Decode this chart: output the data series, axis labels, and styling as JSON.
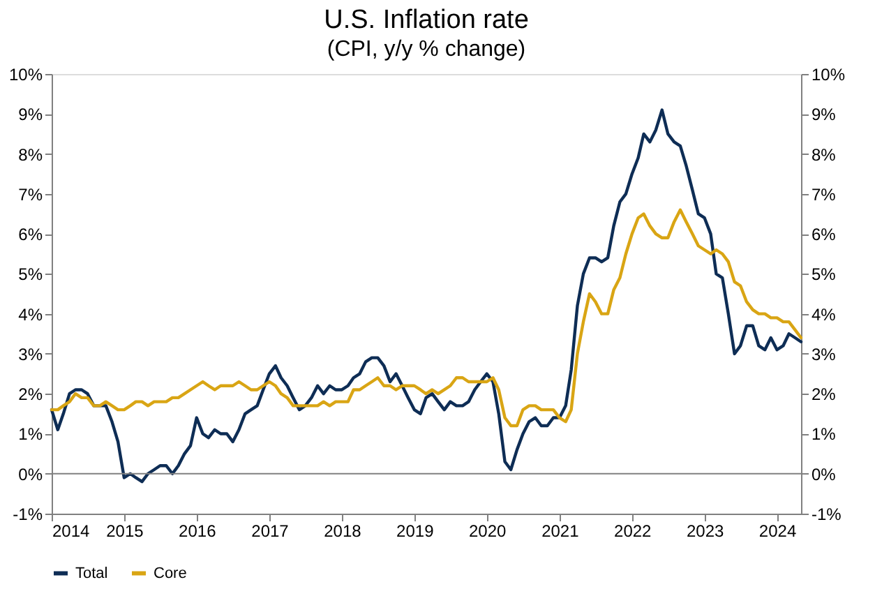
{
  "chart_data": {
    "type": "line",
    "title": "U.S. Inflation rate",
    "subtitle": "(CPI, y/y % change)",
    "x": [
      "2014-01",
      "2014-02",
      "2014-03",
      "2014-04",
      "2014-05",
      "2014-06",
      "2014-07",
      "2014-08",
      "2014-09",
      "2014-10",
      "2014-11",
      "2014-12",
      "2015-01",
      "2015-02",
      "2015-03",
      "2015-04",
      "2015-05",
      "2015-06",
      "2015-07",
      "2015-08",
      "2015-09",
      "2015-10",
      "2015-11",
      "2015-12",
      "2016-01",
      "2016-02",
      "2016-03",
      "2016-04",
      "2016-05",
      "2016-06",
      "2016-07",
      "2016-08",
      "2016-09",
      "2016-10",
      "2016-11",
      "2016-12",
      "2017-01",
      "2017-02",
      "2017-03",
      "2017-04",
      "2017-05",
      "2017-06",
      "2017-07",
      "2017-08",
      "2017-09",
      "2017-10",
      "2017-11",
      "2017-12",
      "2018-01",
      "2018-02",
      "2018-03",
      "2018-04",
      "2018-05",
      "2018-06",
      "2018-07",
      "2018-08",
      "2018-09",
      "2018-10",
      "2018-11",
      "2018-12",
      "2019-01",
      "2019-02",
      "2019-03",
      "2019-04",
      "2019-05",
      "2019-06",
      "2019-07",
      "2019-08",
      "2019-09",
      "2019-10",
      "2019-11",
      "2019-12",
      "2020-01",
      "2020-02",
      "2020-03",
      "2020-04",
      "2020-05",
      "2020-06",
      "2020-07",
      "2020-08",
      "2020-09",
      "2020-10",
      "2020-11",
      "2020-12",
      "2021-01",
      "2021-02",
      "2021-03",
      "2021-04",
      "2021-05",
      "2021-06",
      "2021-07",
      "2021-08",
      "2021-09",
      "2021-10",
      "2021-11",
      "2021-12",
      "2022-01",
      "2022-02",
      "2022-03",
      "2022-04",
      "2022-05",
      "2022-06",
      "2022-07",
      "2022-08",
      "2022-09",
      "2022-10",
      "2022-11",
      "2022-12",
      "2023-01",
      "2023-02",
      "2023-03",
      "2023-04",
      "2023-05",
      "2023-06",
      "2023-07",
      "2023-08",
      "2023-09",
      "2023-10",
      "2023-11",
      "2023-12",
      "2024-01",
      "2024-02",
      "2024-03",
      "2024-04",
      "2024-05"
    ],
    "series": [
      {
        "name": "Total",
        "color": "#0e2d55",
        "values": [
          1.6,
          1.1,
          1.5,
          2.0,
          2.1,
          2.1,
          2.0,
          1.7,
          1.7,
          1.7,
          1.3,
          0.8,
          -0.1,
          0.0,
          -0.1,
          -0.2,
          0.0,
          0.1,
          0.2,
          0.2,
          0.0,
          0.2,
          0.5,
          0.7,
          1.4,
          1.0,
          0.9,
          1.1,
          1.0,
          1.0,
          0.8,
          1.1,
          1.5,
          1.6,
          1.7,
          2.1,
          2.5,
          2.7,
          2.4,
          2.2,
          1.9,
          1.6,
          1.7,
          1.9,
          2.2,
          2.0,
          2.2,
          2.1,
          2.1,
          2.2,
          2.4,
          2.5,
          2.8,
          2.9,
          2.9,
          2.7,
          2.3,
          2.5,
          2.2,
          1.9,
          1.6,
          1.5,
          1.9,
          2.0,
          1.8,
          1.6,
          1.8,
          1.7,
          1.7,
          1.8,
          2.1,
          2.3,
          2.5,
          2.3,
          1.5,
          0.3,
          0.1,
          0.6,
          1.0,
          1.3,
          1.4,
          1.2,
          1.2,
          1.4,
          1.4,
          1.7,
          2.6,
          4.2,
          5.0,
          5.4,
          5.4,
          5.3,
          5.4,
          6.2,
          6.8,
          7.0,
          7.5,
          7.9,
          8.5,
          8.3,
          8.6,
          9.1,
          8.5,
          8.3,
          8.2,
          7.7,
          7.1,
          6.5,
          6.4,
          6.0,
          5.0,
          4.9,
          4.0,
          3.0,
          3.2,
          3.7,
          3.7,
          3.2,
          3.1,
          3.4,
          3.1,
          3.2,
          3.5,
          3.4,
          3.3
        ]
      },
      {
        "name": "Core",
        "color": "#d9a514",
        "values": [
          1.6,
          1.6,
          1.7,
          1.8,
          2.0,
          1.9,
          1.9,
          1.7,
          1.7,
          1.8,
          1.7,
          1.6,
          1.6,
          1.7,
          1.8,
          1.8,
          1.7,
          1.8,
          1.8,
          1.8,
          1.9,
          1.9,
          2.0,
          2.1,
          2.2,
          2.3,
          2.2,
          2.1,
          2.2,
          2.2,
          2.2,
          2.3,
          2.2,
          2.1,
          2.1,
          2.2,
          2.3,
          2.2,
          2.0,
          1.9,
          1.7,
          1.7,
          1.7,
          1.7,
          1.7,
          1.8,
          1.7,
          1.8,
          1.8,
          1.8,
          2.1,
          2.1,
          2.2,
          2.3,
          2.4,
          2.2,
          2.2,
          2.1,
          2.2,
          2.2,
          2.2,
          2.1,
          2.0,
          2.1,
          2.0,
          2.1,
          2.2,
          2.4,
          2.4,
          2.3,
          2.3,
          2.3,
          2.3,
          2.4,
          2.1,
          1.4,
          1.2,
          1.2,
          1.6,
          1.7,
          1.7,
          1.6,
          1.6,
          1.6,
          1.4,
          1.3,
          1.6,
          3.0,
          3.8,
          4.5,
          4.3,
          4.0,
          4.0,
          4.6,
          4.9,
          5.5,
          6.0,
          6.4,
          6.5,
          6.2,
          6.0,
          5.9,
          5.9,
          6.3,
          6.6,
          6.3,
          6.0,
          5.7,
          5.6,
          5.5,
          5.6,
          5.5,
          5.3,
          4.8,
          4.7,
          4.3,
          4.1,
          4.0,
          4.0,
          3.9,
          3.9,
          3.8,
          3.8,
          3.6,
          3.4
        ]
      }
    ],
    "xlim": [
      "2014-01",
      "2024-05"
    ],
    "xticks": [
      "2014",
      "2015",
      "2016",
      "2017",
      "2018",
      "2019",
      "2020",
      "2021",
      "2022",
      "2023",
      "2024"
    ],
    "ylim": [
      -1,
      10
    ],
    "yticks": [
      {
        "value": -1,
        "label": "-1%"
      },
      {
        "value": 0,
        "label": "0%"
      },
      {
        "value": 1,
        "label": "1%"
      },
      {
        "value": 2,
        "label": "2%"
      },
      {
        "value": 3,
        "label": "3%"
      },
      {
        "value": 4,
        "label": "4%"
      },
      {
        "value": 5,
        "label": "5%"
      },
      {
        "value": 6,
        "label": "6%"
      },
      {
        "value": 7,
        "label": "7%"
      },
      {
        "value": 8,
        "label": "8%"
      },
      {
        "value": 9,
        "label": "9%"
      },
      {
        "value": 10,
        "label": "10%"
      }
    ],
    "y2lim": [
      -1,
      10
    ],
    "y2ticks": [
      {
        "value": -1,
        "label": "-1%"
      },
      {
        "value": 0,
        "label": "0%"
      },
      {
        "value": 1,
        "label": "1%"
      },
      {
        "value": 2,
        "label": "2%"
      },
      {
        "value": 3,
        "label": "3%"
      },
      {
        "value": 4,
        "label": "4%"
      },
      {
        "value": 5,
        "label": "5%"
      },
      {
        "value": 6,
        "label": "6%"
      },
      {
        "value": 7,
        "label": "7%"
      },
      {
        "value": 8,
        "label": "8%"
      },
      {
        "value": 9,
        "label": "9%"
      },
      {
        "value": 10,
        "label": "10%"
      }
    ],
    "ref_lines": [
      {
        "axis": "y",
        "value": 0,
        "color": "#808080"
      }
    ],
    "legend": "bottom",
    "grid": false,
    "marker": "none",
    "line_style": "solid"
  }
}
